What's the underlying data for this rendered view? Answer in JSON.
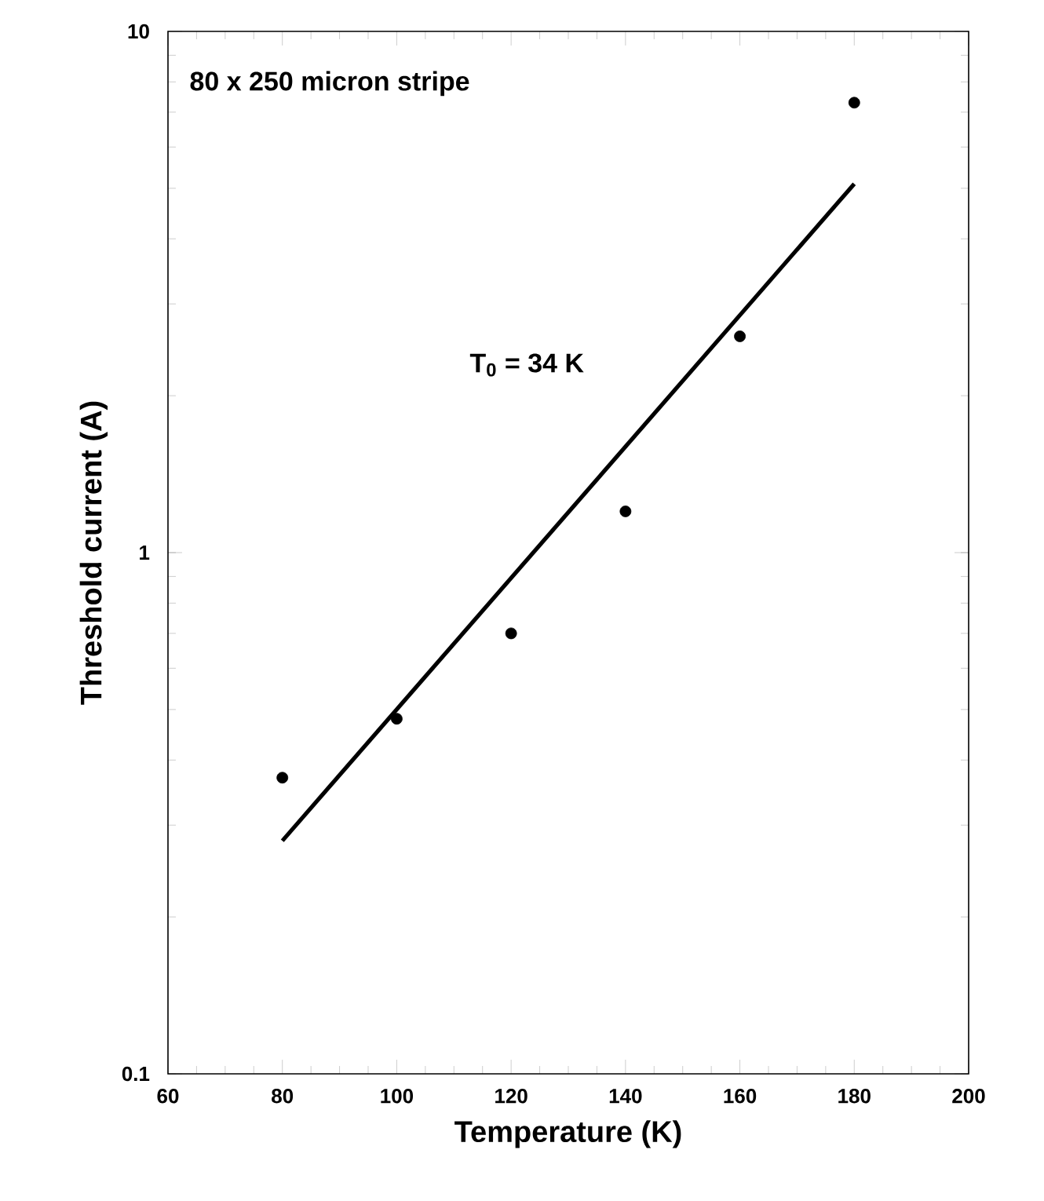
{
  "chart_data": {
    "type": "scatter",
    "xlabel": "Temperature (K)",
    "ylabel": "Threshold current (A)",
    "annotations": [
      "80 x 250 micron stripe",
      "T$_{0}$ = 34 K"
    ],
    "x": [
      80,
      100,
      120,
      140,
      160,
      180
    ],
    "series": [
      {
        "color": "#000000",
        "marker": "circle",
        "values": [
          0.37,
          0.48,
          0.7,
          1.2,
          2.6,
          7.3
        ]
      },
      {
        "type": "line",
        "color": "#000000",
        "marker": "none",
        "line_style": "solid",
        "x": [
          80,
          180
        ],
        "values": [
          0.28,
          5.1
        ]
      }
    ],
    "log": "y",
    "xlim": [
      60,
      200
    ],
    "ylim": [
      0.1,
      10
    ],
    "xticks": [
      60,
      80,
      100,
      120,
      140,
      160,
      180,
      200
    ],
    "yticks": [
      0.1,
      1,
      10
    ]
  }
}
